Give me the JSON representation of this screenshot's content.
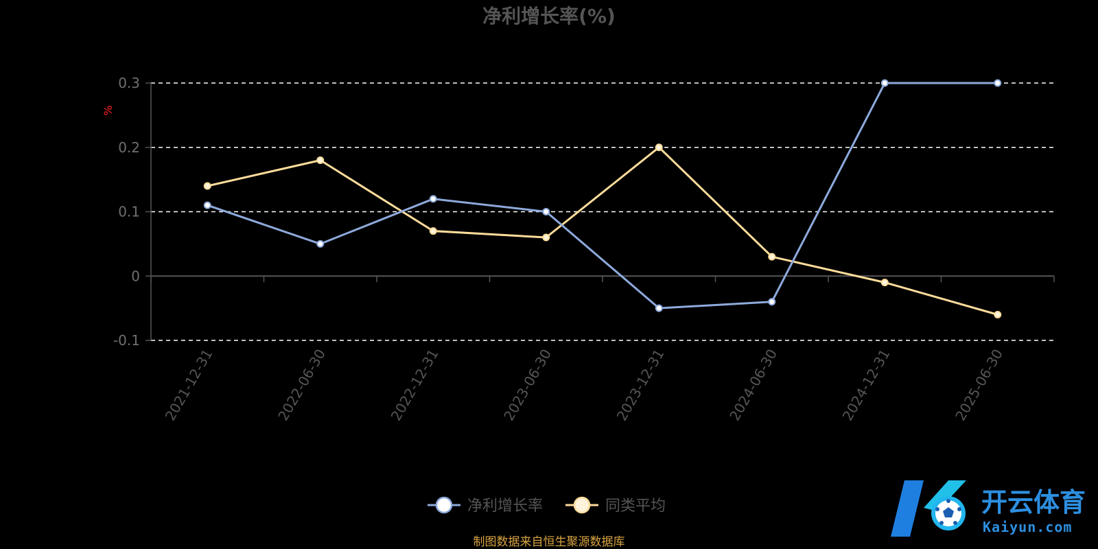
{
  "chart_data": {
    "type": "line",
    "title": "净利增长率(%)",
    "ylabel": "%",
    "categories": [
      "2021-12-31",
      "2022-06-30",
      "2022-12-31",
      "2023-06-30",
      "2023-12-31",
      "2024-06-30",
      "2024-12-31",
      "2025-06-30"
    ],
    "ylim": [
      -0.1,
      0.3
    ],
    "yticks": [
      "0.3",
      "0.2",
      "0.1",
      "0",
      "-0.1"
    ],
    "grid": "dashed horizontal",
    "legend_position": "bottom-center",
    "series": [
      {
        "name": "净利增长率",
        "color": "#8eaadc",
        "values": [
          0.11,
          0.05,
          0.12,
          0.1,
          -0.05,
          -0.04,
          0.3,
          0.3
        ]
      },
      {
        "name": "同类平均",
        "color": "#fddc9a",
        "values": [
          0.14,
          0.18,
          0.07,
          0.06,
          0.2,
          0.03,
          -0.01,
          -0.06
        ]
      }
    ]
  },
  "footer": {
    "source": "制图数据来自恒生聚源数据库"
  },
  "watermark": {
    "brand_cn": "开云体育",
    "brand_en": "Kaiyun.com",
    "icon": "soccer-ball-logo-icon"
  },
  "colors": {
    "background": "#000000",
    "grid": "#ffffff",
    "axis": "#555555"
  }
}
